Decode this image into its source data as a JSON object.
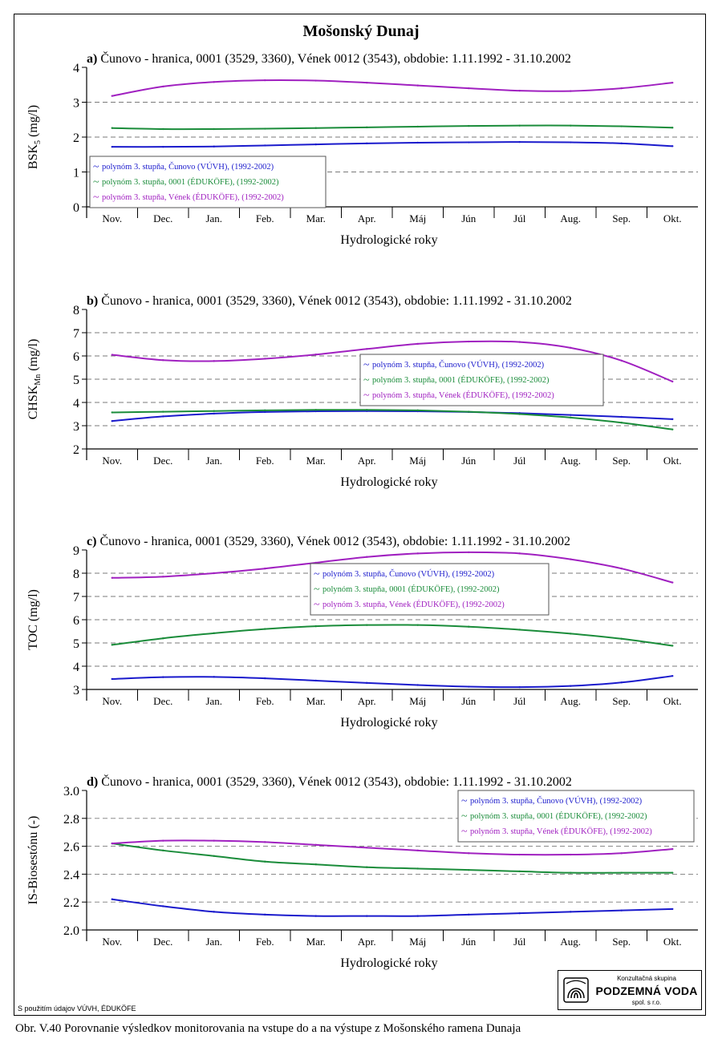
{
  "page": {
    "title": "Mošonský Dunaj",
    "footnote": "S použitím údajov VÚVH, ÉDUKÖFE",
    "caption": "Obr. V.40 Porovnanie výsledkov monitorovania na vstupe do a na výstupe z Mošonského ramena Dunaja",
    "logo": {
      "top": "Konzultačná skupina",
      "name": "PODZEMNÁ VODA",
      "bottom": "spol. s r.o."
    }
  },
  "colors": {
    "cunovo": "#1a1acc",
    "site0001": "#1a8c3a",
    "venek": "#a020c0",
    "grid": "#7a7a7a"
  },
  "chart_data": [
    {
      "type": "line",
      "panel_label": "a)",
      "title": "Čunovo - hranica, 0001 (3529, 3360), Vének 0012 (3543), obdobie: 1.11.1992 - 31.10.2002",
      "ylabel": "BSK",
      "ylabel_sub": "5",
      "ylabel_unit": "(mg/l)",
      "xlabel": "Hydrologické roky",
      "categories": [
        "Nov.",
        "Dec.",
        "Jan.",
        "Feb.",
        "Mar.",
        "Apr.",
        "Máj",
        "Jún",
        "Júl",
        "Aug.",
        "Sep.",
        "Okt."
      ],
      "ylim": [
        0,
        4
      ],
      "yticks": [
        "0",
        "1",
        "2",
        "3",
        "4"
      ],
      "grid": true,
      "legend_position": "lower-left",
      "series": [
        {
          "name": "polynóm 3. stupňa, Čunovo (VÚVH), (1992-2002)",
          "color_key": "cunovo",
          "values": [
            1.72,
            1.72,
            1.73,
            1.76,
            1.79,
            1.82,
            1.84,
            1.85,
            1.86,
            1.85,
            1.82,
            1.74
          ]
        },
        {
          "name": "polynóm 3. stupňa, 0001 (ÉDUKÖFE), (1992-2002)",
          "color_key": "site0001",
          "values": [
            2.26,
            2.23,
            2.23,
            2.24,
            2.26,
            2.28,
            2.3,
            2.32,
            2.33,
            2.33,
            2.31,
            2.27
          ]
        },
        {
          "name": "polynóm 3. stupňa, Vének (ÉDUKÖFE), (1992-2002)",
          "color_key": "venek",
          "values": [
            3.18,
            3.45,
            3.58,
            3.63,
            3.62,
            3.56,
            3.48,
            3.4,
            3.33,
            3.32,
            3.4,
            3.56
          ]
        }
      ]
    },
    {
      "type": "line",
      "panel_label": "b)",
      "title": "Čunovo - hranica, 0001 (3529, 3360), Vének 0012 (3543), obdobie: 1.11.1992 - 31.10.2002",
      "ylabel": "CHSK",
      "ylabel_sub": "Mn",
      "ylabel_unit": "(mg/l)",
      "xlabel": "Hydrologické roky",
      "categories": [
        "Nov.",
        "Dec.",
        "Jan.",
        "Feb.",
        "Mar.",
        "Apr.",
        "Máj",
        "Jún",
        "Júl",
        "Aug.",
        "Sep.",
        "Okt."
      ],
      "ylim": [
        2,
        8
      ],
      "yticks": [
        "2",
        "3",
        "4",
        "5",
        "6",
        "7",
        "8"
      ],
      "grid": true,
      "legend_position": "center-right",
      "series": [
        {
          "name": "polynóm 3. stupňa, Čunovo (VÚVH), (1992-2002)",
          "color_key": "cunovo",
          "values": [
            3.2,
            3.4,
            3.52,
            3.59,
            3.62,
            3.63,
            3.62,
            3.59,
            3.54,
            3.46,
            3.38,
            3.28
          ]
        },
        {
          "name": "polynóm 3. stupňa, 0001 (ÉDUKÖFE), (1992-2002)",
          "color_key": "site0001",
          "values": [
            3.57,
            3.6,
            3.63,
            3.66,
            3.68,
            3.68,
            3.66,
            3.6,
            3.5,
            3.35,
            3.13,
            2.84
          ]
        },
        {
          "name": "polynóm 3. stupňa, Vének (ÉDUKÖFE), (1992-2002)",
          "color_key": "venek",
          "values": [
            6.05,
            5.82,
            5.78,
            5.88,
            6.06,
            6.3,
            6.52,
            6.62,
            6.6,
            6.35,
            5.8,
            4.9
          ]
        }
      ]
    },
    {
      "type": "line",
      "panel_label": "c)",
      "title": "Čunovo - hranica, 0001 (3529, 3360), Vének 0012 (3543), obdobie: 1.11.1992 - 31.10.2002",
      "ylabel": "TOC",
      "ylabel_sub": "",
      "ylabel_unit": "(mg/l)",
      "xlabel": "Hydrologické roky",
      "categories": [
        "Nov.",
        "Dec.",
        "Jan.",
        "Feb.",
        "Mar.",
        "Apr.",
        "Máj",
        "Jún",
        "Júl",
        "Aug.",
        "Sep.",
        "Okt."
      ],
      "ylim": [
        3,
        9
      ],
      "yticks": [
        "3",
        "4",
        "5",
        "6",
        "7",
        "8",
        "9"
      ],
      "grid": true,
      "legend_position": "top-center",
      "series": [
        {
          "name": "polynóm 3. stupňa, Čunovo (VÚVH), (1992-2002)",
          "color_key": "cunovo",
          "values": [
            3.45,
            3.53,
            3.54,
            3.48,
            3.38,
            3.28,
            3.19,
            3.12,
            3.1,
            3.15,
            3.3,
            3.58
          ]
        },
        {
          "name": "polynóm 3. stupňa, 0001 (ÉDUKÖFE), (1992-2002)",
          "color_key": "site0001",
          "values": [
            4.92,
            5.2,
            5.42,
            5.6,
            5.72,
            5.77,
            5.77,
            5.7,
            5.57,
            5.4,
            5.18,
            4.88
          ]
        },
        {
          "name": "polynóm 3. stupňa, Vének (ÉDUKÖFE), (1992-2002)",
          "color_key": "venek",
          "values": [
            7.8,
            7.85,
            8.0,
            8.2,
            8.45,
            8.7,
            8.85,
            8.9,
            8.85,
            8.6,
            8.2,
            7.6
          ]
        }
      ]
    },
    {
      "type": "line",
      "panel_label": "d)",
      "title": "Čunovo - hranica, 0001 (3529, 3360), Vének 0012 (3543), obdobie: 1.11.1992 - 31.10.2002",
      "ylabel": "IS-Biosestónu",
      "ylabel_sub": "",
      "ylabel_unit": "(-)",
      "xlabel": "Hydrologické roky",
      "categories": [
        "Nov.",
        "Dec.",
        "Jan.",
        "Feb.",
        "Mar.",
        "Apr.",
        "Máj",
        "Jún",
        "Júl",
        "Aug.",
        "Sep.",
        "Okt."
      ],
      "ylim": [
        2.0,
        3.0
      ],
      "yticks": [
        "2.0",
        "2.2",
        "2.4",
        "2.6",
        "2.8",
        "3.0"
      ],
      "grid": true,
      "legend_position": "top-right",
      "series": [
        {
          "name": "polynóm 3. stupňa, Čunovo (VÚVH), (1992-2002)",
          "color_key": "cunovo",
          "values": [
            2.22,
            2.17,
            2.13,
            2.11,
            2.1,
            2.1,
            2.1,
            2.11,
            2.12,
            2.13,
            2.14,
            2.15
          ]
        },
        {
          "name": "polynóm 3. stupňa, 0001 (ÉDUKÖFE), (1992-2002)",
          "color_key": "site0001",
          "values": [
            2.62,
            2.57,
            2.53,
            2.49,
            2.47,
            2.45,
            2.44,
            2.43,
            2.42,
            2.41,
            2.41,
            2.41
          ]
        },
        {
          "name": "polynóm 3. stupňa, Vének (ÉDUKÖFE), (1992-2002)",
          "color_key": "venek",
          "values": [
            2.62,
            2.64,
            2.64,
            2.63,
            2.61,
            2.59,
            2.57,
            2.55,
            2.54,
            2.54,
            2.55,
            2.58
          ]
        }
      ]
    }
  ]
}
